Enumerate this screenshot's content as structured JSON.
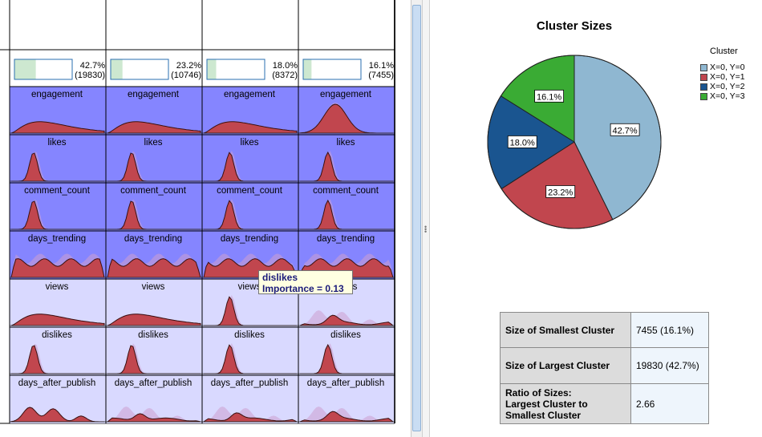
{
  "clusters": [
    {
      "percent_label": "42.7%",
      "count_label": "(19830)",
      "size_fraction": 0.427
    },
    {
      "percent_label": "23.2%",
      "count_label": "(10746)",
      "size_fraction": 0.232
    },
    {
      "percent_label": "18.0%",
      "count_label": "(8372)",
      "size_fraction": 0.18
    },
    {
      "percent_label": "16.1%",
      "count_label": "(7455)",
      "size_fraction": 0.161
    }
  ],
  "features": [
    {
      "name": "engagement",
      "importance_level": "high",
      "shapes": [
        "right-skew",
        "right-skew",
        "right-skew",
        "normal"
      ]
    },
    {
      "name": "likes",
      "importance_level": "high",
      "shapes": [
        "narrow",
        "narrow",
        "narrow",
        "narrow"
      ]
    },
    {
      "name": "comment_count",
      "importance_level": "high",
      "shapes": [
        "narrow",
        "narrow",
        "narrow",
        "narrow"
      ]
    },
    {
      "name": "days_trending",
      "importance_level": "high",
      "shapes": [
        "wavy",
        "wavy",
        "wavy",
        "wavy"
      ]
    },
    {
      "name": "views",
      "importance_level": "low",
      "shapes": [
        "right-skew",
        "right-skew",
        "narrow",
        "flat"
      ]
    },
    {
      "name": "dislikes",
      "importance_level": "low",
      "shapes": [
        "narrow",
        "narrow",
        "narrow",
        "narrow"
      ]
    },
    {
      "name": "days_after_publish",
      "importance_level": "low",
      "shapes": [
        "bumpy",
        "flat",
        "flat",
        "flat"
      ]
    }
  ],
  "tooltip": {
    "title": "dislikes",
    "text": "Importance = 0.13"
  },
  "chart_data": {
    "type": "pie",
    "title": "Cluster Sizes",
    "legend_title": "Cluster",
    "legend_placement": "top-right",
    "categories": [
      "X=0, Y=0",
      "X=0, Y=1",
      "X=0, Y=2",
      "X=0, Y=3"
    ],
    "values": [
      42.7,
      23.2,
      18.0,
      16.1
    ],
    "labels": [
      "42.7%",
      "23.2%",
      "18.0%",
      "16.1%"
    ],
    "colors": [
      "#8fb7d1",
      "#c1464e",
      "#1a5590",
      "#3aab34"
    ]
  },
  "summary": [
    {
      "label": "Size of Smallest Cluster",
      "value": "7455 (16.1%)"
    },
    {
      "label": "Size of Largest Cluster",
      "value": "19830 (42.7%)"
    },
    {
      "label_lines": [
        "Ratio of Sizes:",
        "Largest Cluster to",
        "Smallest Cluster"
      ],
      "value": "2.66"
    }
  ],
  "colors": {
    "high_importance_bg": "#8585ff",
    "low_importance_bg": "#d9d9ff",
    "cluster_fill": "#c1464e",
    "overall_fill": "#cc9fd0",
    "size_bar_fill": "#cde8d0",
    "size_bar_border": "#2a6fb0"
  }
}
